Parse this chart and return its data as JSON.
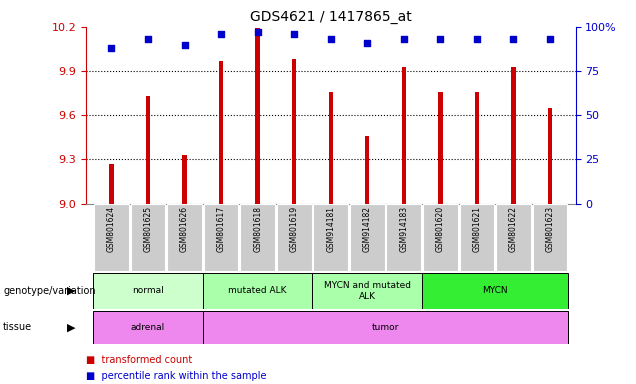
{
  "title": "GDS4621 / 1417865_at",
  "samples": [
    "GSM801624",
    "GSM801625",
    "GSM801626",
    "GSM801617",
    "GSM801618",
    "GSM801619",
    "GSM914181",
    "GSM914182",
    "GSM914183",
    "GSM801620",
    "GSM801621",
    "GSM801622",
    "GSM801623"
  ],
  "bar_values": [
    9.27,
    9.73,
    9.33,
    9.97,
    10.19,
    9.98,
    9.76,
    9.46,
    9.93,
    9.76,
    9.76,
    9.93,
    9.65
  ],
  "percentile_values": [
    88,
    93,
    90,
    96,
    97,
    96,
    93,
    91,
    93,
    93,
    93,
    93,
    93
  ],
  "ymin": 9.0,
  "ymax": 10.2,
  "yticks": [
    9.0,
    9.3,
    9.6,
    9.9,
    10.2
  ],
  "right_yticks": [
    0,
    25,
    50,
    75,
    100
  ],
  "bar_color": "#cc0000",
  "dot_color": "#0000cc",
  "bar_width": 0.12,
  "geno_groups": [
    {
      "label": "normal",
      "start": 0,
      "end": 3,
      "color": "#ccffcc"
    },
    {
      "label": "mutated ALK",
      "start": 3,
      "end": 6,
      "color": "#aaffaa"
    },
    {
      "label": "MYCN and mutated\nALK",
      "start": 6,
      "end": 9,
      "color": "#aaffaa"
    },
    {
      "label": "MYCN",
      "start": 9,
      "end": 13,
      "color": "#33ee33"
    }
  ],
  "tissue_groups": [
    {
      "label": "adrenal",
      "start": 0,
      "end": 3,
      "color": "#ee88ee"
    },
    {
      "label": "tumor",
      "start": 3,
      "end": 13,
      "color": "#ee88ee"
    }
  ],
  "genotype_label": "genotype/variation",
  "tissue_label": "tissue",
  "legend_bar": "transformed count",
  "legend_dot": "percentile rank within the sample",
  "left_axis_color": "#cc0000",
  "right_axis_color": "#0000cc",
  "sample_box_color": "#cccccc",
  "grid_color": "#000000"
}
